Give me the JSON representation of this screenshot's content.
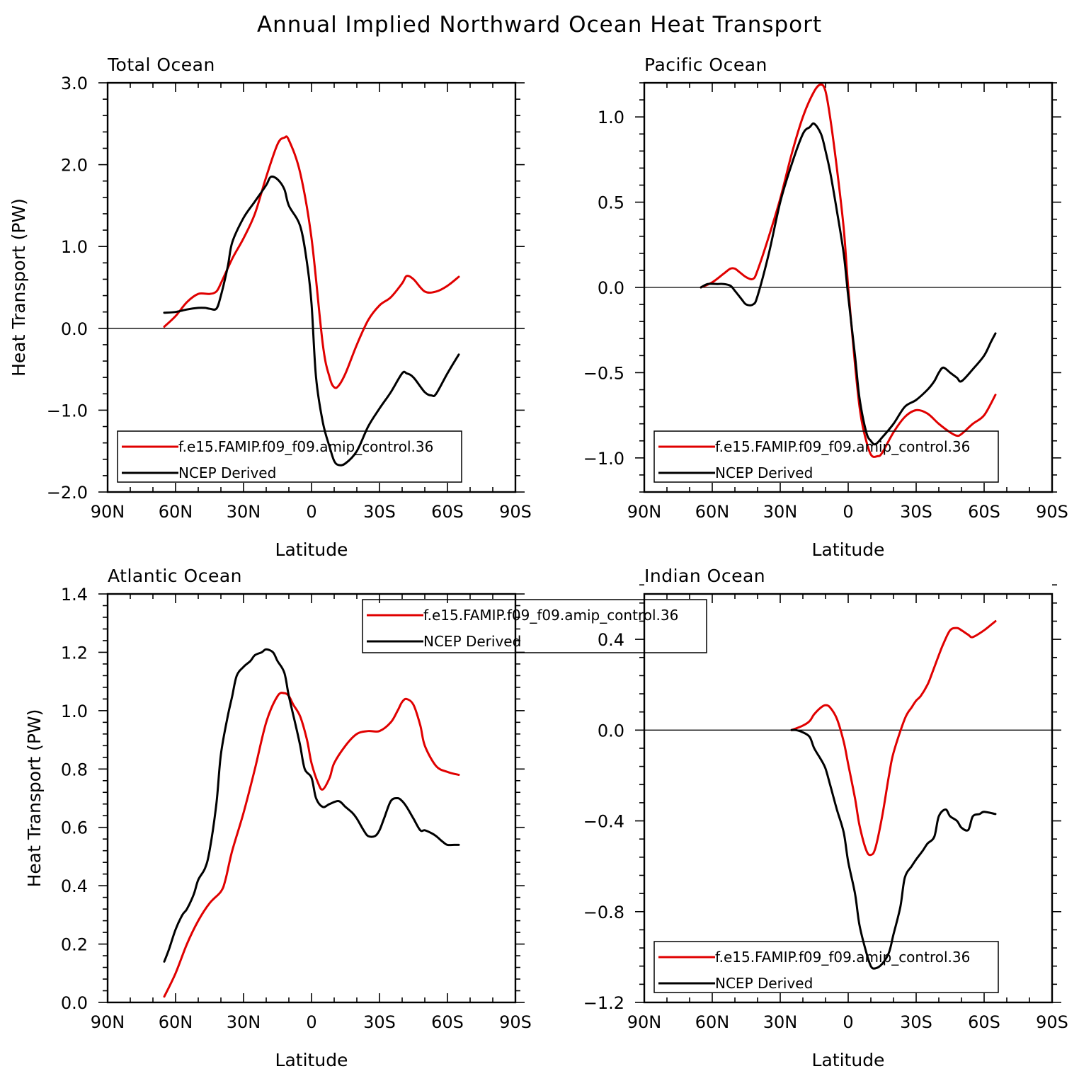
{
  "title": "Annual Implied Northward Ocean Heat Transport",
  "colors": {
    "model": "#e00000",
    "obs": "#000000"
  },
  "chart_data": [
    {
      "type": "line",
      "title": "Total Ocean",
      "xlabel": "Latitude",
      "ylabel": "Heat Transport (PW)",
      "xlim": [
        90,
        -90
      ],
      "xtick_values": [
        90,
        60,
        30,
        0,
        -30,
        -60,
        -90
      ],
      "xtick_labels": [
        "90N",
        "60N",
        "30N",
        "0",
        "30S",
        "60S",
        "90S"
      ],
      "ylim": [
        -2.0,
        3.0
      ],
      "ytick_values": [
        -2.0,
        -1.0,
        0.0,
        1.0,
        2.0,
        3.0
      ],
      "ytick_labels": [
        "−2.0",
        "−1.0",
        "0.0",
        "1.0",
        "2.0",
        "3.0"
      ],
      "ylabel_visible": true,
      "legend_position": "bottom",
      "series": [
        {
          "name": "f.e15.FAMIP.f09_f09.amip_control.36",
          "color": "#e00000",
          "x": [
            65,
            60,
            55,
            50,
            45,
            42,
            40,
            35,
            30,
            25,
            20,
            15,
            12,
            10,
            5,
            0,
            -5,
            -8,
            -10,
            -12,
            -15,
            -20,
            -25,
            -30,
            -35,
            -40,
            -42,
            -45,
            -50,
            -55,
            -60,
            -65
          ],
          "y": [
            0.02,
            0.15,
            0.32,
            0.42,
            0.42,
            0.45,
            0.55,
            0.85,
            1.1,
            1.4,
            1.85,
            2.25,
            2.33,
            2.3,
            1.9,
            1.1,
            -0.2,
            -0.6,
            -0.72,
            -0.7,
            -0.55,
            -0.2,
            0.1,
            0.28,
            0.38,
            0.55,
            0.64,
            0.6,
            0.45,
            0.45,
            0.52,
            0.63
          ]
        },
        {
          "name": "NCEP Derived",
          "color": "#000000",
          "x": [
            65,
            60,
            55,
            50,
            47,
            45,
            42,
            40,
            37,
            35,
            30,
            25,
            20,
            18,
            15,
            12,
            10,
            5,
            2,
            0,
            -2,
            -5,
            -8,
            -10,
            -12,
            -15,
            -20,
            -25,
            -30,
            -35,
            -40,
            -42,
            -45,
            -50,
            -53,
            -55,
            -60,
            -65
          ],
          "y": [
            0.19,
            0.2,
            0.23,
            0.25,
            0.25,
            0.24,
            0.24,
            0.4,
            0.75,
            1.05,
            1.35,
            1.55,
            1.75,
            1.85,
            1.82,
            1.7,
            1.5,
            1.25,
            0.8,
            0.3,
            -0.6,
            -1.15,
            -1.45,
            -1.62,
            -1.67,
            -1.65,
            -1.5,
            -1.2,
            -0.98,
            -0.78,
            -0.55,
            -0.55,
            -0.6,
            -0.78,
            -0.82,
            -0.8,
            -0.55,
            -0.32
          ]
        }
      ]
    },
    {
      "type": "line",
      "title": "Pacific Ocean",
      "xlabel": "Latitude",
      "ylabel": "",
      "xlim": [
        90,
        -90
      ],
      "xtick_values": [
        90,
        60,
        30,
        0,
        -30,
        -60,
        -90
      ],
      "xtick_labels": [
        "90N",
        "60N",
        "30N",
        "0",
        "30S",
        "60S",
        "90S"
      ],
      "ylim": [
        -1.2,
        1.2
      ],
      "ytick_values": [
        -1.0,
        -0.5,
        0.0,
        0.5,
        1.0
      ],
      "ytick_labels": [
        "−1.0",
        "−0.5",
        "0.0",
        "0.5",
        "1.0"
      ],
      "ylabel_visible": false,
      "legend_position": "bottom",
      "series": [
        {
          "name": "f.e15.FAMIP.f09_f09.amip_control.36",
          "color": "#e00000",
          "x": [
            65,
            60,
            55,
            52,
            50,
            48,
            45,
            42,
            40,
            35,
            30,
            25,
            20,
            15,
            12,
            10,
            8,
            5,
            2,
            0,
            -3,
            -5,
            -7,
            -10,
            -13,
            -15,
            -20,
            -25,
            -30,
            -35,
            -40,
            -45,
            -48,
            -50,
            -55,
            -60,
            -65
          ],
          "y": [
            0.0,
            0.03,
            0.08,
            0.11,
            0.11,
            0.09,
            0.06,
            0.05,
            0.1,
            0.3,
            0.52,
            0.78,
            1.0,
            1.15,
            1.19,
            1.15,
            1.0,
            0.7,
            0.35,
            0.0,
            -0.45,
            -0.7,
            -0.85,
            -0.98,
            -0.99,
            -0.97,
            -0.85,
            -0.76,
            -0.72,
            -0.74,
            -0.8,
            -0.85,
            -0.87,
            -0.86,
            -0.8,
            -0.75,
            -0.63
          ]
        },
        {
          "name": "NCEP Derived",
          "color": "#000000",
          "x": [
            65,
            62,
            58,
            55,
            52,
            50,
            47,
            45,
            42,
            40,
            35,
            30,
            25,
            20,
            17,
            15,
            12,
            10,
            8,
            5,
            2,
            0,
            -3,
            -5,
            -8,
            -10,
            -12,
            -15,
            -20,
            -25,
            -30,
            -35,
            -38,
            -40,
            -42,
            -45,
            -48,
            -50,
            -55,
            -60,
            -63,
            -65
          ],
          "y": [
            0.0,
            0.02,
            0.02,
            0.02,
            0.01,
            -0.02,
            -0.07,
            -0.1,
            -0.1,
            -0.05,
            0.2,
            0.5,
            0.72,
            0.9,
            0.94,
            0.96,
            0.9,
            0.8,
            0.68,
            0.45,
            0.2,
            -0.05,
            -0.4,
            -0.65,
            -0.85,
            -0.9,
            -0.92,
            -0.88,
            -0.8,
            -0.7,
            -0.66,
            -0.6,
            -0.55,
            -0.5,
            -0.47,
            -0.5,
            -0.53,
            -0.55,
            -0.48,
            -0.4,
            -0.32,
            -0.27
          ]
        }
      ]
    },
    {
      "type": "line",
      "title": "Atlantic Ocean",
      "xlabel": "Latitude",
      "ylabel": "Heat Transport (PW)",
      "xlim": [
        90,
        -90
      ],
      "xtick_values": [
        90,
        60,
        30,
        0,
        -30,
        -60,
        -90
      ],
      "xtick_labels": [
        "90N",
        "60N",
        "30N",
        "0",
        "30S",
        "60S",
        "90S"
      ],
      "ylim": [
        0.0,
        1.4
      ],
      "ytick_values": [
        0.0,
        0.2,
        0.4,
        0.6,
        0.8,
        1.0,
        1.2,
        1.4
      ],
      "ytick_labels": [
        "0.0",
        "0.2",
        "0.4",
        "0.6",
        "0.8",
        "1.0",
        "1.2",
        "1.4"
      ],
      "ylabel_visible": true,
      "legend_position": "top",
      "series": [
        {
          "name": "f.e15.FAMIP.f09_f09.amip_control.36",
          "color": "#e00000",
          "x": [
            65,
            60,
            55,
            50,
            45,
            40,
            38,
            35,
            30,
            25,
            20,
            15,
            12,
            10,
            8,
            5,
            2,
            0,
            -3,
            -5,
            -8,
            -10,
            -15,
            -20,
            -25,
            -30,
            -35,
            -38,
            -40,
            -42,
            -45,
            -48,
            -50,
            -55,
            -60,
            -65
          ],
          "y": [
            0.02,
            0.1,
            0.2,
            0.28,
            0.34,
            0.38,
            0.42,
            0.52,
            0.65,
            0.8,
            0.96,
            1.05,
            1.06,
            1.05,
            1.02,
            0.98,
            0.9,
            0.82,
            0.75,
            0.73,
            0.77,
            0.82,
            0.88,
            0.92,
            0.93,
            0.93,
            0.96,
            1.0,
            1.03,
            1.04,
            1.02,
            0.95,
            0.88,
            0.81,
            0.79,
            0.78
          ]
        },
        {
          "name": "NCEP Derived",
          "color": "#000000",
          "x": [
            65,
            63,
            60,
            57,
            55,
            52,
            50,
            47,
            45,
            42,
            40,
            37,
            35,
            33,
            30,
            27,
            25,
            22,
            20,
            17,
            15,
            12,
            10,
            7,
            5,
            3,
            0,
            -2,
            -5,
            -8,
            -12,
            -15,
            -18,
            -20,
            -23,
            -25,
            -28,
            -30,
            -32,
            -35,
            -38,
            -40,
            -42,
            -45,
            -48,
            -50,
            -53,
            -55,
            -58,
            -60,
            -63,
            -65
          ],
          "y": [
            0.14,
            0.18,
            0.25,
            0.3,
            0.32,
            0.37,
            0.42,
            0.46,
            0.52,
            0.68,
            0.85,
            0.98,
            1.05,
            1.12,
            1.15,
            1.17,
            1.19,
            1.2,
            1.21,
            1.2,
            1.17,
            1.13,
            1.05,
            0.95,
            0.88,
            0.8,
            0.77,
            0.7,
            0.67,
            0.68,
            0.69,
            0.67,
            0.65,
            0.63,
            0.59,
            0.57,
            0.57,
            0.59,
            0.63,
            0.69,
            0.7,
            0.69,
            0.67,
            0.63,
            0.59,
            0.59,
            0.58,
            0.57,
            0.55,
            0.54,
            0.54,
            0.54
          ]
        }
      ]
    },
    {
      "type": "line",
      "title": "Indian Ocean",
      "xlabel": "Latitude",
      "ylabel": "",
      "xlim": [
        90,
        -90
      ],
      "xtick_values": [
        90,
        60,
        30,
        0,
        -30,
        -60,
        -90
      ],
      "xtick_labels": [
        "90N",
        "60N",
        "30N",
        "0",
        "30S",
        "60S",
        "90S"
      ],
      "ylim": [
        -1.2,
        0.6
      ],
      "ytick_values": [
        -1.2,
        -0.8,
        -0.4,
        0.0,
        0.4
      ],
      "ytick_labels": [
        "−1.2",
        "−0.8",
        "−0.4",
        "0.0",
        "0.4"
      ],
      "ylabel_visible": false,
      "legend_position": "bottom",
      "series": [
        {
          "name": "f.e15.FAMIP.f09_f09.amip_control.36",
          "color": "#e00000",
          "x": [
            25,
            20,
            17,
            15,
            12,
            10,
            8,
            5,
            2,
            0,
            -3,
            -5,
            -8,
            -10,
            -12,
            -15,
            -18,
            -20,
            -25,
            -28,
            -30,
            -32,
            -35,
            -37,
            -40,
            -42,
            -45,
            -48,
            -50,
            -53,
            -55,
            -60,
            -65
          ],
          "y": [
            0.0,
            0.02,
            0.04,
            0.07,
            0.1,
            0.11,
            0.1,
            0.05,
            -0.05,
            -0.15,
            -0.3,
            -0.42,
            -0.53,
            -0.55,
            -0.52,
            -0.38,
            -0.2,
            -0.1,
            0.05,
            0.1,
            0.13,
            0.15,
            0.2,
            0.25,
            0.33,
            0.38,
            0.44,
            0.45,
            0.44,
            0.42,
            0.41,
            0.44,
            0.48
          ]
        },
        {
          "name": "NCEP Derived",
          "color": "#000000",
          "x": [
            25,
            23,
            20,
            17,
            15,
            12,
            10,
            8,
            5,
            2,
            0,
            -3,
            -5,
            -8,
            -10,
            -12,
            -15,
            -18,
            -20,
            -23,
            -25,
            -28,
            -30,
            -33,
            -35,
            -38,
            -40,
            -43,
            -45,
            -48,
            -50,
            -53,
            -55,
            -58,
            -60,
            -65
          ],
          "y": [
            0.0,
            0.0,
            -0.01,
            -0.03,
            -0.08,
            -0.13,
            -0.17,
            -0.24,
            -0.35,
            -0.45,
            -0.58,
            -0.72,
            -0.86,
            -0.98,
            -1.04,
            -1.05,
            -1.03,
            -0.98,
            -0.9,
            -0.78,
            -0.65,
            -0.6,
            -0.57,
            -0.53,
            -0.5,
            -0.47,
            -0.38,
            -0.35,
            -0.38,
            -0.4,
            -0.43,
            -0.44,
            -0.38,
            -0.37,
            -0.36,
            -0.37
          ]
        }
      ]
    }
  ]
}
